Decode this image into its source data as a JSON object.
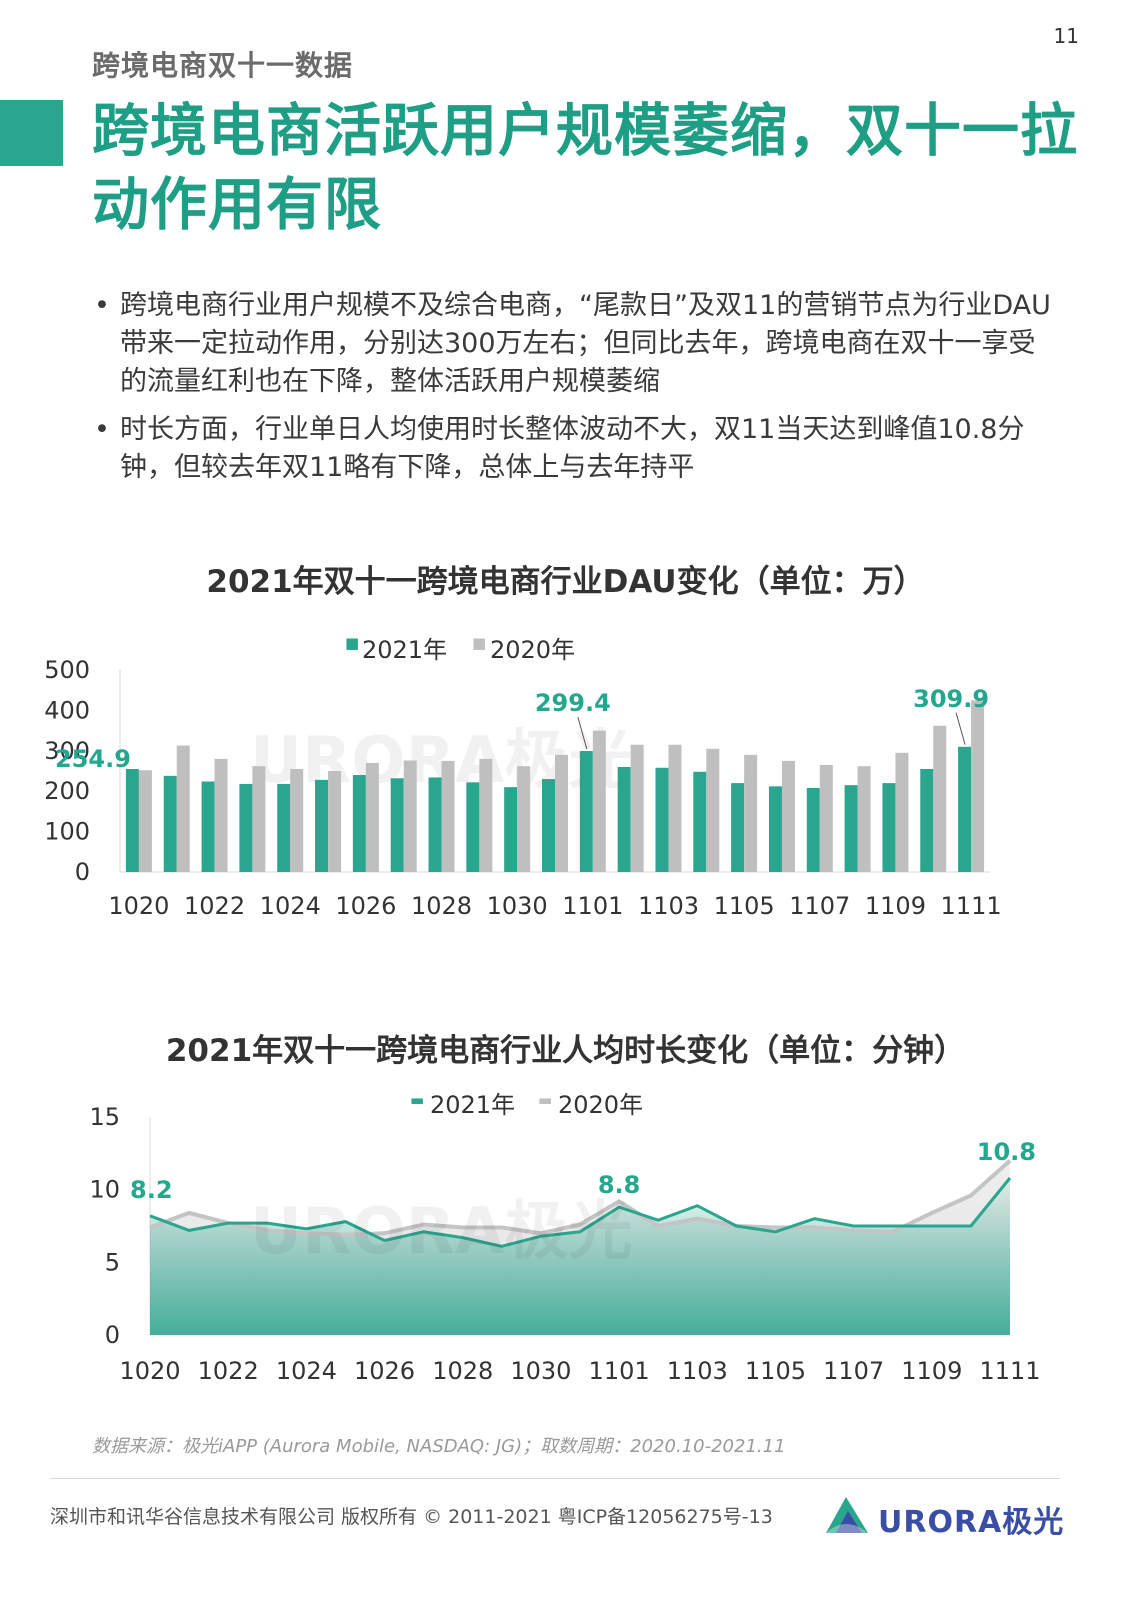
{
  "page_number": "11",
  "section_label": "跨境电商双十一数据",
  "headline": "跨境电商活跃用户规模萎缩，双十一拉动作用有限",
  "bullets": [
    "跨境电商行业用户规模不及综合电商，“尾款日”及双11的营销节点为行业DAU带来一定拉动作用，分别达300万左右；但同比去年，跨境电商在双十一享受的流量红利也在下降，整体活跃用户规模萎缩",
    "时长方面，行业单日人均使用时长整体波动不大，双11当天达到峰值10.8分钟，但较去年双11略有下降，总体上与去年持平"
  ],
  "bullet_symbol": "•",
  "watermark": "URORA极光",
  "colors": {
    "accent": "#2aa58e",
    "gray": "#bfbfbf",
    "label": "#23a78f"
  },
  "chart_data": [
    {
      "type": "bar",
      "title": "2021年双十一跨境电商行业DAU变化（单位：万）",
      "categories": [
        "1020",
        "1021",
        "1022",
        "1023",
        "1024",
        "1025",
        "1026",
        "1027",
        "1028",
        "1029",
        "1030",
        "1031",
        "1101",
        "1102",
        "1103",
        "1104",
        "1105",
        "1106",
        "1107",
        "1108",
        "1109",
        "1110",
        "1111"
      ],
      "tick_labels": [
        "1020",
        "1022",
        "1024",
        "1026",
        "1028",
        "1030",
        "1101",
        "1103",
        "1105",
        "1107",
        "1109",
        "1111"
      ],
      "series": [
        {
          "name": "2021年",
          "values": [
            254.9,
            238,
            224,
            218,
            218,
            228,
            240,
            232,
            234,
            222,
            210,
            230,
            299.4,
            260,
            258,
            248,
            220,
            212,
            208,
            215,
            220,
            255,
            309.9
          ]
        },
        {
          "name": "2020年",
          "values": [
            252,
            313,
            280,
            262,
            255,
            250,
            270,
            276,
            275,
            280,
            262,
            290,
            350,
            315,
            315,
            305,
            290,
            275,
            265,
            262,
            295,
            362,
            425
          ]
        }
      ],
      "data_labels": [
        {
          "category": "1020",
          "text": "254.9"
        },
        {
          "category": "1101",
          "text": "299.4"
        },
        {
          "category": "1111",
          "text": "309.9"
        }
      ],
      "ylim": [
        0,
        500
      ],
      "yticks": [
        "0",
        "100",
        "200",
        "300",
        "400",
        "500"
      ],
      "legend": "top-center"
    },
    {
      "type": "area",
      "title": "2021年双十一跨境电商行业人均时长变化（单位：分钟）",
      "categories": [
        "1020",
        "1021",
        "1022",
        "1023",
        "1024",
        "1025",
        "1026",
        "1027",
        "1028",
        "1029",
        "1030",
        "1031",
        "1101",
        "1102",
        "1103",
        "1104",
        "1105",
        "1106",
        "1107",
        "1108",
        "1109",
        "1110",
        "1111"
      ],
      "tick_labels": [
        "1020",
        "1022",
        "1024",
        "1026",
        "1028",
        "1030",
        "1101",
        "1103",
        "1105",
        "1107",
        "1109",
        "1111"
      ],
      "series": [
        {
          "name": "2021年",
          "values": [
            8.2,
            7.2,
            7.7,
            7.7,
            7.3,
            7.8,
            6.5,
            7.1,
            6.7,
            6.1,
            6.8,
            7.1,
            8.8,
            7.9,
            8.9,
            7.5,
            7.1,
            8.0,
            7.5,
            7.5,
            7.5,
            7.5,
            10.8
          ]
        },
        {
          "name": "2020年",
          "values": [
            7.4,
            8.4,
            7.7,
            7.2,
            7.0,
            6.9,
            7.0,
            7.6,
            7.4,
            7.4,
            7.0,
            7.6,
            9.2,
            7.5,
            8.0,
            7.5,
            7.4,
            7.4,
            7.2,
            7.1,
            8.4,
            9.6,
            12.0
          ]
        }
      ],
      "data_labels": [
        {
          "category": "1020",
          "text": "8.2"
        },
        {
          "category": "1101",
          "text": "8.8"
        },
        {
          "category": "1111",
          "text": "10.8"
        }
      ],
      "ylim": [
        0,
        15
      ],
      "yticks": [
        "0",
        "5",
        "10",
        "15"
      ],
      "legend": "top-center"
    }
  ],
  "source_note": "数据来源：极光iAPP (Aurora Mobile, NASDAQ: JG)；取数周期：2020.10-2021.11",
  "footer_text": "深圳市和讯华谷信息技术有限公司 版权所有 © 2011-2021 粤ICP备12056275号-13",
  "footer_logo_text": "URORA极光"
}
